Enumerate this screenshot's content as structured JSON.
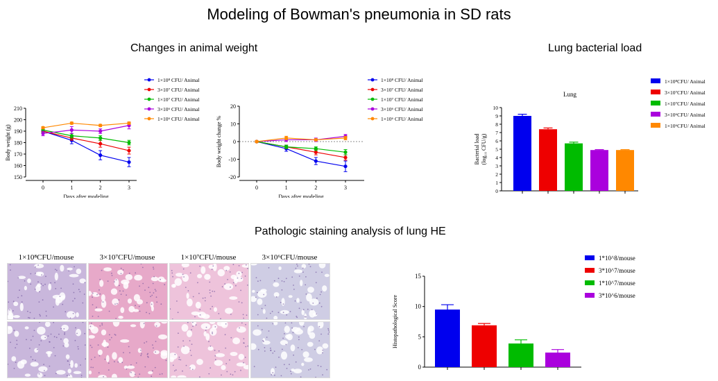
{
  "title": "Modeling of Bowman's pneumonia in SD rats",
  "sections": {
    "weight": "Changes in animal weight",
    "load": "Lung bacterial load",
    "patho": "Pathologic staining analysis of lung HE"
  },
  "colors": [
    "#0000ee",
    "#ee0000",
    "#00bb00",
    "#aa00dd",
    "#ff8800"
  ],
  "histology": {
    "labels": [
      "1×10⁸CFU/mouse",
      "3×10⁷CFU/mouse",
      "1×10⁷CFU/mouse",
      "3×10⁶CFU/mouse"
    ],
    "stain_colors": [
      "#c9b7dc",
      "#e7a9c9",
      "#eec3db",
      "#cfcde4"
    ]
  },
  "chart_data": [
    {
      "type": "line",
      "xlabel": "Days after modeling",
      "ylabel": "Body weight (g)",
      "x": [
        0,
        1,
        2,
        3
      ],
      "ylim": [
        150,
        210
      ],
      "yticks": [
        150,
        160,
        170,
        180,
        190,
        200,
        210
      ],
      "series": [
        {
          "name": "1×10⁸ CFU/ Animal",
          "values": [
            190,
            182,
            169,
            163
          ],
          "err": [
            2,
            3,
            4,
            4
          ]
        },
        {
          "name": "3×10⁷ CFU/ Animal",
          "values": [
            190,
            184,
            179,
            173
          ],
          "err": [
            2,
            2,
            3,
            3
          ]
        },
        {
          "name": "1×10⁷ CFU/ Animal",
          "values": [
            191,
            186,
            184,
            180
          ],
          "err": [
            2,
            2,
            2,
            2
          ]
        },
        {
          "name": "3×10⁶ CFU/ Animal",
          "values": [
            188,
            191,
            190,
            195
          ],
          "err": [
            2,
            3,
            2,
            3
          ]
        },
        {
          "name": "1×10⁶ CFU/ Animal",
          "values": [
            193,
            197,
            195,
            197
          ],
          "err": [
            1,
            1,
            1,
            1
          ]
        }
      ]
    },
    {
      "type": "line",
      "xlabel": "Days after modeling",
      "ylabel": "Body weight change %",
      "x": [
        0,
        1,
        2,
        3
      ],
      "ylim": [
        -20,
        20
      ],
      "yticks": [
        -20,
        -10,
        0,
        10,
        20
      ],
      "series": [
        {
          "name": "1×10⁸ CFU/ Animal",
          "values": [
            0,
            -4,
            -11,
            -14
          ],
          "err": [
            0.5,
            1.5,
            2,
            3
          ]
        },
        {
          "name": "3×10⁷ CFU/ Animal",
          "values": [
            0,
            -3,
            -6,
            -9
          ],
          "err": [
            0.5,
            1,
            1.5,
            1.5
          ]
        },
        {
          "name": "1×10⁷ CFU/ Animal",
          "values": [
            0,
            -3,
            -4,
            -6
          ],
          "err": [
            0.5,
            1,
            1,
            1.5
          ]
        },
        {
          "name": "3×10⁶ CFU/ Animal",
          "values": [
            0,
            1,
            1,
            3
          ],
          "err": [
            0.5,
            1,
            1,
            1
          ]
        },
        {
          "name": "1×10⁶ CFU/ Animal",
          "values": [
            0,
            2,
            1,
            2
          ],
          "err": [
            0.5,
            1,
            0.5,
            1
          ]
        }
      ]
    },
    {
      "type": "bar",
      "title": "Lung",
      "ylabel": "Bacterial load (log₁₀ CFU/g)",
      "ylim": [
        0,
        10
      ],
      "yticks": [
        0,
        1,
        2,
        3,
        4,
        5,
        6,
        7,
        8,
        9,
        10
      ],
      "categories": [
        "1×10⁸CFU/ Animal",
        "3×10⁷CFU/ Animal",
        "1×10⁷CFU/ Animal",
        "3×10⁶CFU/ Animal",
        "1×10⁶CFU/ Animal"
      ],
      "values": [
        9.0,
        7.4,
        5.7,
        4.9,
        4.9
      ],
      "err": [
        0.2,
        0.15,
        0.15,
        0.05,
        0.05
      ]
    },
    {
      "type": "bar",
      "ylabel": "Histopathological Score",
      "ylim": [
        0,
        15
      ],
      "yticks": [
        0,
        5,
        10,
        15
      ],
      "categories": [
        "1*10^8/mouse",
        "3*10^7/mouse",
        "1*10^7/mouse",
        "3*10^6/mouse"
      ],
      "values": [
        9.5,
        6.9,
        3.9,
        2.4
      ],
      "err": [
        0.8,
        0.3,
        0.6,
        0.5
      ]
    }
  ]
}
